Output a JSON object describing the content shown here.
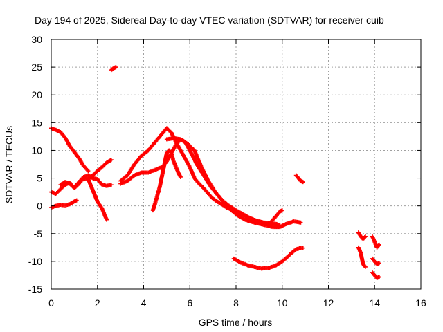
{
  "chart_data": {
    "type": "scatter",
    "title": "Day 194 of 2025, Sidereal Day-to-day VTEC variation (SDTVAR) for receiver cuib",
    "xlabel": "GPS time / hours",
    "ylabel": "SDTVAR / TECUs",
    "xlim": [
      0,
      16
    ],
    "ylim": [
      -15,
      30
    ],
    "xticks": [
      0,
      2,
      4,
      6,
      8,
      10,
      12,
      14,
      16
    ],
    "yticks": [
      -15,
      -10,
      -5,
      0,
      5,
      10,
      15,
      20,
      25,
      30
    ],
    "grid": true,
    "colors": {
      "points": "#ff0000",
      "grid": "#a0a0a0",
      "axis": "#000000"
    },
    "series": [
      {
        "name": "track-1",
        "x": [
          0.0,
          0.2,
          0.4,
          0.6,
          0.8,
          1.0,
          1.2,
          1.4,
          1.6
        ],
        "y": [
          14.0,
          13.7,
          13.3,
          12.3,
          10.8,
          9.7,
          8.6,
          7.2,
          6.3
        ]
      },
      {
        "name": "track-2",
        "x": [
          0.0,
          0.2,
          0.4,
          0.6,
          0.8,
          1.0,
          1.2,
          1.4,
          1.6,
          1.8,
          2.0,
          2.2,
          2.4
        ],
        "y": [
          2.5,
          2.2,
          3.0,
          3.8,
          4.2,
          3.2,
          4.0,
          5.0,
          4.8,
          2.8,
          0.8,
          -0.5,
          -2.5
        ]
      },
      {
        "name": "track-3",
        "x": [
          0.0,
          0.2,
          0.4,
          0.6,
          0.8,
          1.0,
          1.1
        ],
        "y": [
          -0.3,
          0.0,
          0.2,
          0.1,
          0.3,
          0.8,
          1.0
        ]
      },
      {
        "name": "track-4",
        "x": [
          0.4,
          0.6,
          0.8,
          1.0,
          1.2,
          1.4,
          1.6,
          1.8,
          2.0,
          2.2,
          2.4,
          2.6
        ],
        "y": [
          3.8,
          4.3,
          4.0,
          3.3,
          4.3,
          5.2,
          5.5,
          5.0,
          4.8,
          3.8,
          3.6,
          3.8
        ]
      },
      {
        "name": "track-5",
        "x": [
          1.6,
          1.8,
          2.0,
          2.2,
          2.4,
          2.6
        ],
        "y": [
          4.8,
          5.5,
          6.3,
          7.0,
          7.8,
          8.3
        ]
      },
      {
        "name": "track-6",
        "x": [
          2.6,
          2.7,
          2.8
        ],
        "y": [
          24.5,
          24.8,
          25.0
        ]
      },
      {
        "name": "track-7",
        "x": [
          3.0,
          3.3,
          3.6,
          3.9,
          4.2,
          4.5,
          4.8,
          5.0,
          5.2,
          5.4,
          5.6,
          5.8,
          6.0,
          6.2,
          6.4,
          6.6,
          6.8,
          7.0,
          7.3,
          7.6,
          7.9,
          8.2,
          8.5,
          8.8,
          9.1,
          9.4,
          9.7,
          9.9
        ],
        "y": [
          4.5,
          5.5,
          7.5,
          9.0,
          10.0,
          11.5,
          13.0,
          14.0,
          13.2,
          11.5,
          10.0,
          8.5,
          7.0,
          5.0,
          4.0,
          3.2,
          2.2,
          1.3,
          0.5,
          -0.3,
          -0.8,
          -1.4,
          -2.0,
          -2.6,
          -3.0,
          -3.3,
          -3.4,
          -3.5
        ]
      },
      {
        "name": "track-8",
        "x": [
          3.0,
          3.3,
          3.6,
          3.9,
          4.2,
          4.5,
          4.8,
          5.0,
          5.2,
          5.4,
          5.6,
          5.8,
          6.0,
          6.3,
          6.6,
          6.9,
          7.2,
          7.5,
          7.8,
          8.1,
          8.4,
          8.7,
          9.0,
          9.3,
          9.6,
          9.9,
          10.2,
          10.5,
          10.8
        ],
        "y": [
          4.0,
          4.5,
          5.5,
          6.0,
          6.0,
          6.5,
          7.0,
          8.0,
          9.5,
          11.0,
          12.0,
          11.5,
          10.0,
          7.5,
          5.5,
          3.5,
          2.0,
          0.5,
          -0.8,
          -1.8,
          -2.5,
          -2.9,
          -3.2,
          -3.5,
          -3.8,
          -3.8,
          -3.2,
          -2.8,
          -3.0
        ]
      },
      {
        "name": "track-9",
        "x": [
          4.4,
          4.5,
          4.6,
          4.7,
          4.8,
          4.9,
          5.0,
          5.1,
          5.2,
          5.3,
          5.4,
          5.5,
          5.6
        ],
        "y": [
          -0.8,
          0.5,
          2.0,
          3.5,
          5.5,
          7.5,
          9.5,
          10.0,
          9.5,
          8.0,
          7.0,
          6.0,
          5.2
        ]
      },
      {
        "name": "track-10",
        "x": [
          5.0,
          5.3,
          5.6,
          5.9,
          6.2,
          6.5,
          6.8,
          7.1,
          7.4,
          7.7,
          8.0,
          8.3,
          8.6,
          8.9,
          9.2,
          9.5,
          9.8
        ],
        "y": [
          12.0,
          12.2,
          12.0,
          11.2,
          10.0,
          7.0,
          4.5,
          2.5,
          1.0,
          0.0,
          -0.8,
          -1.5,
          -2.2,
          -2.7,
          -3.0,
          -3.1,
          -3.3
        ]
      },
      {
        "name": "track-11",
        "x": [
          9.5,
          9.7,
          9.9,
          10.0
        ],
        "y": [
          -3.0,
          -2.0,
          -1.0,
          -0.8
        ]
      },
      {
        "name": "track-12",
        "x": [
          7.9,
          8.2,
          8.5,
          8.8,
          9.1,
          9.4,
          9.7,
          10.0,
          10.2,
          10.4,
          10.6,
          10.8,
          10.9
        ],
        "y": [
          -9.5,
          -10.2,
          -10.7,
          -11.0,
          -11.3,
          -11.2,
          -10.8,
          -10.0,
          -9.3,
          -8.5,
          -7.8,
          -7.6,
          -7.6
        ]
      },
      {
        "name": "track-13",
        "x": [
          10.6,
          10.7,
          10.8,
          10.9
        ],
        "y": [
          5.5,
          5.0,
          4.5,
          4.3
        ]
      },
      {
        "name": "track-14",
        "x": [
          13.3,
          13.4,
          13.5,
          13.6
        ],
        "y": [
          -4.8,
          -5.5,
          -6.0,
          -5.5
        ]
      },
      {
        "name": "track-15",
        "x": [
          13.3,
          13.4,
          13.5,
          13.6
        ],
        "y": [
          -7.5,
          -8.5,
          -10.5,
          -11.0
        ]
      },
      {
        "name": "track-16",
        "x": [
          13.9,
          14.0,
          14.1,
          14.2
        ],
        "y": [
          -5.5,
          -6.5,
          -7.5,
          -7.0
        ]
      },
      {
        "name": "track-17",
        "x": [
          13.9,
          14.0,
          14.1,
          14.2
        ],
        "y": [
          -9.5,
          -10.0,
          -10.5,
          -10.3
        ]
      },
      {
        "name": "track-18",
        "x": [
          13.9,
          14.0,
          14.1,
          14.2
        ],
        "y": [
          -12.0,
          -12.5,
          -13.0,
          -12.8
        ]
      }
    ]
  }
}
